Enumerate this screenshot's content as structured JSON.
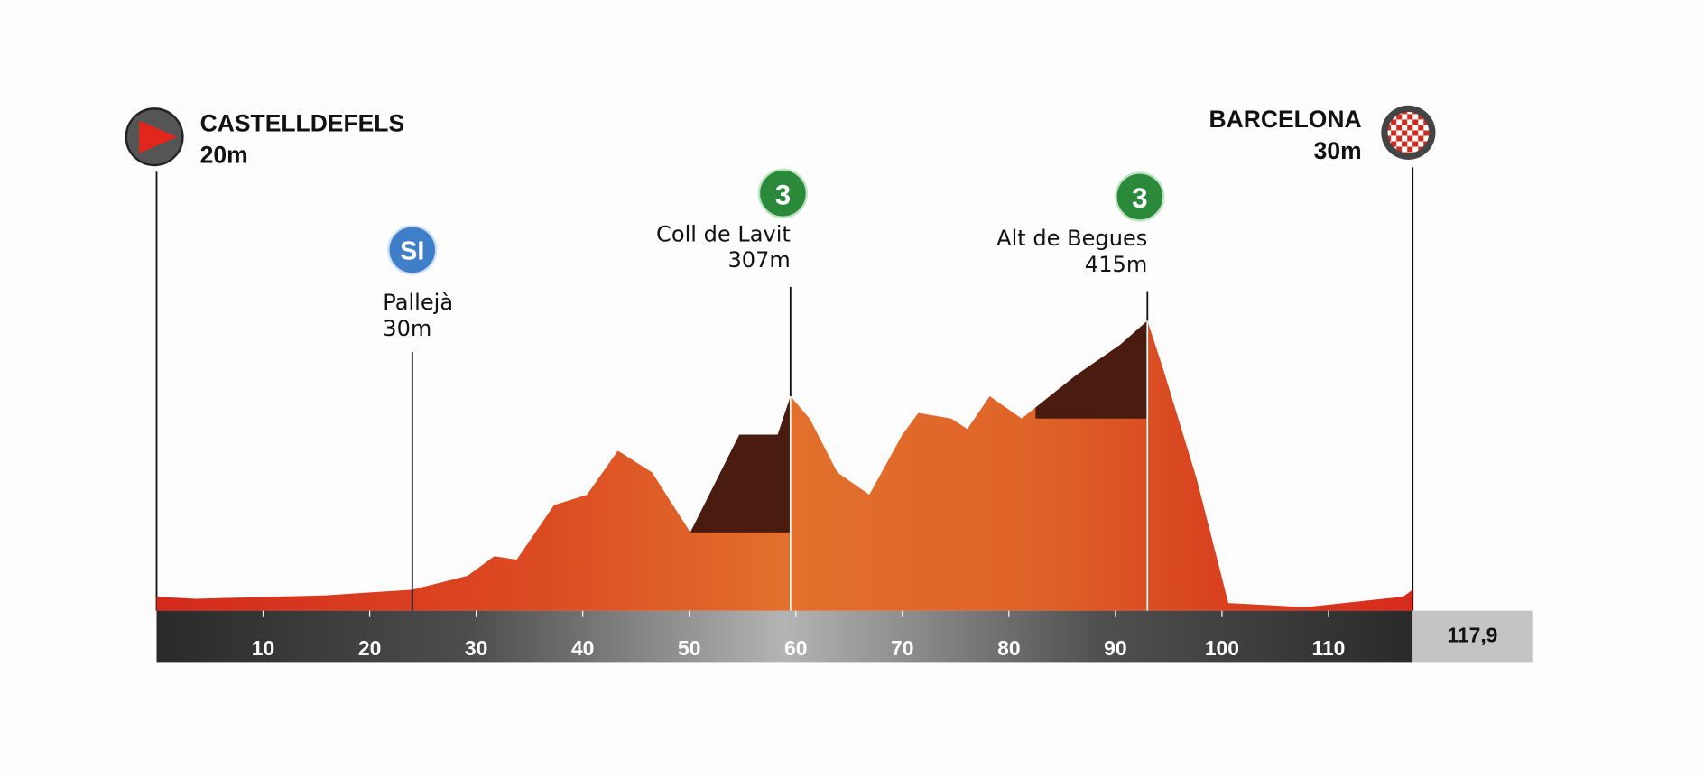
{
  "chart_data": {
    "type": "area",
    "color": "#d9531e",
    "x": [
      0,
      3.7,
      15.9,
      24,
      29.2,
      31.7,
      33.8,
      37.3,
      40.4,
      43.3,
      46.5,
      50.1,
      54.7,
      58.3,
      59.5,
      61.3,
      63.9,
      66.9,
      70,
      71.5,
      74.6,
      76.1,
      78.2,
      81.2,
      86.3,
      90.4,
      93,
      94.5,
      97.6,
      100.6,
      107.8,
      117,
      117.9
    ],
    "values": [
      20,
      17,
      22,
      30,
      50,
      78,
      73,
      151,
      166,
      229,
      198,
      112,
      252,
      252,
      307,
      275,
      198,
      166,
      252,
      283,
      275,
      260,
      307,
      275,
      337,
      380,
      415,
      345,
      190,
      11,
      5,
      20,
      30
    ],
    "xlim": [
      0,
      117.9
    ],
    "xticks": [
      10,
      20,
      30,
      40,
      50,
      60,
      70,
      80,
      90,
      100,
      110,
      {
        "value": 117.9,
        "label": "117,9"
      }
    ],
    "start": {
      "name": "CASTELLDEFELS",
      "elevation": "20m"
    },
    "finish": {
      "name": "BARCELONA",
      "elevation": "30m"
    },
    "sprints": [
      {
        "badge": "SI",
        "name": "Pallejà",
        "elevation": "30m",
        "km": 24
      }
    ],
    "climbs": [
      {
        "badge": "3",
        "name": "Coll de Lavit",
        "elevation": "307m",
        "km": 59.5,
        "climb_from_km": 50.1,
        "climb_base": 112
      },
      {
        "badge": "3",
        "name": "Alt de Begues",
        "elevation": "415m",
        "km": 93,
        "climb_from_km": 82.5,
        "climb_base": 275
      }
    ]
  }
}
